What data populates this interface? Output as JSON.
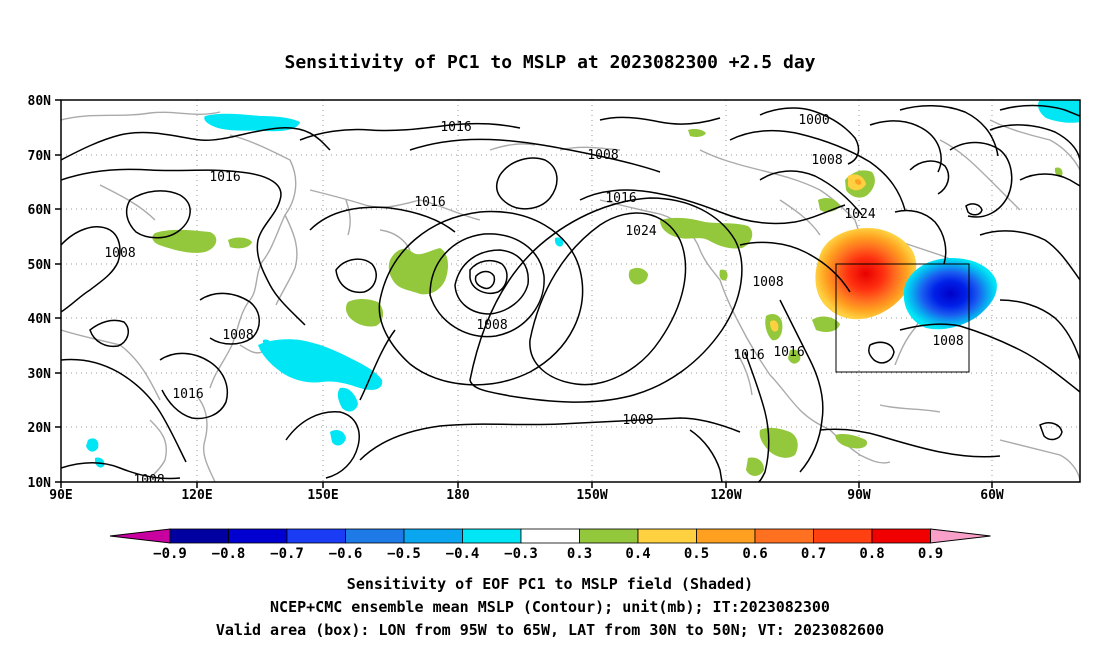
{
  "title": "Sensitivity of PC1 to MSLP at 2023082300 +2.5 day",
  "lat_ticks": [
    "80N",
    "70N",
    "60N",
    "50N",
    "40N",
    "30N",
    "20N",
    "10N"
  ],
  "lon_ticks": [
    "90E",
    "120E",
    "150E",
    "180",
    "150W",
    "120W",
    "90W",
    "60W"
  ],
  "contour_labels": [
    "1016",
    "1000",
    "1008",
    "1008",
    "1016",
    "1016",
    "1016",
    "1024",
    "1024",
    "1008",
    "1008",
    "1008",
    "1008",
    "1016",
    "1016",
    "1008",
    "1016",
    "1008",
    "1008"
  ],
  "colorbar": {
    "labels": [
      "-0.9",
      "-0.8",
      "-0.7",
      "-0.6",
      "-0.5",
      "-0.4",
      "-0.3",
      "0.3",
      "0.4",
      "0.5",
      "0.6",
      "0.7",
      "0.8",
      "0.9"
    ],
    "colors": [
      "#c800a0",
      "#0000a0",
      "#0000d0",
      "#1a3cf5",
      "#1e7ae6",
      "#0aa6f0",
      "#00e6f5",
      "#ffffff",
      "#94c83c",
      "#ffd040",
      "#ffa020",
      "#ff7020",
      "#ff4010",
      "#f00000",
      "#f8a0c8"
    ]
  },
  "footer": {
    "line1": "Sensitivity of EOF PC1 to MSLP field (Shaded)",
    "line2": "NCEP+CMC ensemble mean MSLP (Contour); unit(mb); IT:2023082300",
    "line3": "Valid area (box): LON from 95W to 65W, LAT from 30N to 50N; VT: 2023082600"
  }
}
